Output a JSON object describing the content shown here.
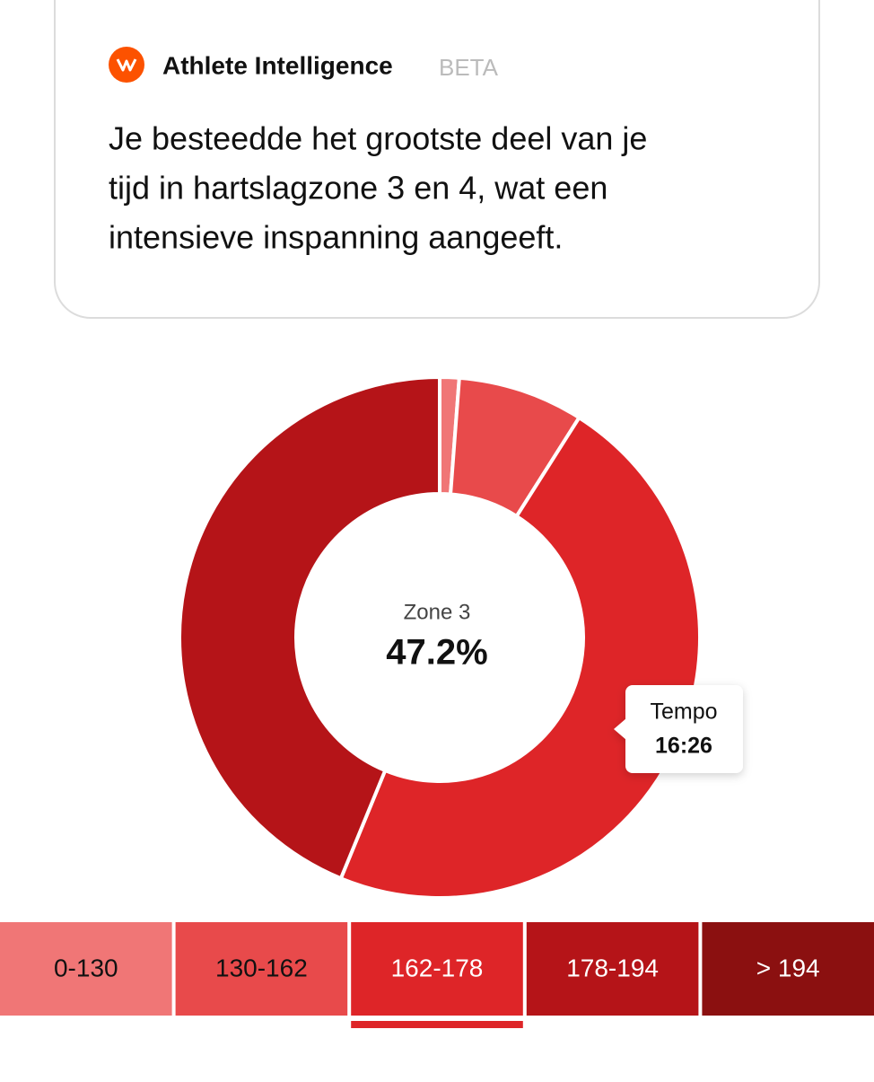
{
  "header": {
    "title": "Athlete Intelligence",
    "badge": "BETA",
    "text_lines": [
      "Je besteedde het grootste deel van je",
      "tijd in hartslagzone 3 en 4, wat een",
      "intensieve inspanning aangeeft."
    ]
  },
  "chart_data": {
    "type": "pie",
    "donut": true,
    "categories": [
      "0-130",
      "130-162",
      "162-178",
      "178-194",
      "> 194"
    ],
    "values": [
      1.2,
      7.8,
      47.2,
      43.8,
      0
    ],
    "value_labels": [
      null,
      null,
      "47.2%",
      null,
      null
    ],
    "colors": [
      "#f07676",
      "#e84a4b",
      "#de2528",
      "#b51418",
      "#8b1010"
    ],
    "center_title": "Zone 3",
    "selected": 2,
    "tooltip": {
      "title": "Tempo",
      "value": "16:26"
    }
  }
}
